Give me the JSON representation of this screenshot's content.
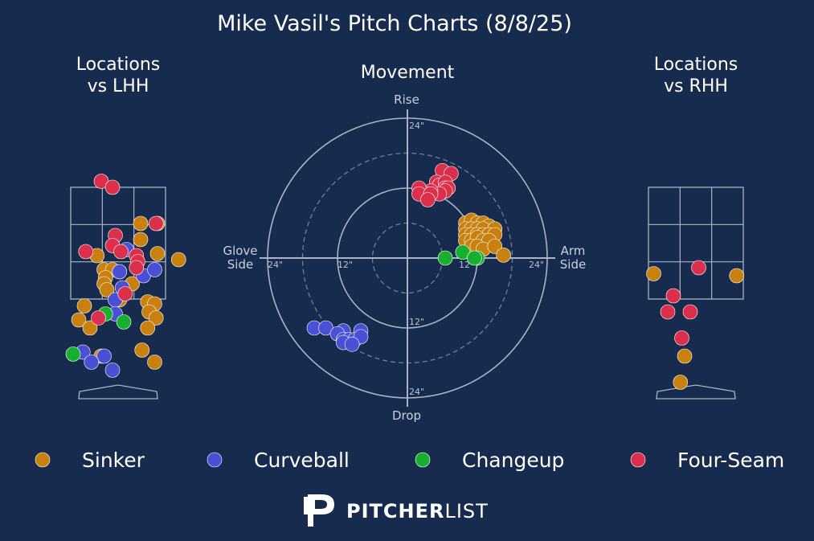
{
  "title": "Mike Vasil's Pitch Charts (8/8/25)",
  "colors": {
    "background": "#162b4d",
    "Sinker": "#c8800f",
    "Curveball": "#4a4fd6",
    "Changeup": "#16b02e",
    "Four-Seam": "#dc2f4c"
  },
  "legend": {
    "items": [
      {
        "name": "Sinker",
        "color": "#c8800f"
      },
      {
        "name": "Curveball",
        "color": "#4a4fd6"
      },
      {
        "name": "Changeup",
        "color": "#16b02e"
      },
      {
        "name": "Four-Seam",
        "color": "#dc2f4c"
      }
    ]
  },
  "logo": {
    "bold": "PITCHER",
    "light": "LIST"
  },
  "chart_data": [
    {
      "type": "scatter",
      "title": "Locations vs LHH",
      "title_lines": [
        "Locations",
        "vs LHH"
      ],
      "series": [
        {
          "name": "Sinker",
          "points": [
            [
              -1.2,
              2.15
            ],
            [
              0.8,
              4.2
            ],
            [
              1.4,
              4.2
            ],
            [
              0.8,
              3.8
            ],
            [
              -0.75,
              3.4
            ],
            [
              1.4,
              3.45
            ],
            [
              2.15,
              3.3
            ],
            [
              -0.5,
              3.05
            ],
            [
              -0.2,
              3.05
            ],
            [
              0.05,
              3.0
            ],
            [
              -0.45,
              2.85
            ],
            [
              -0.5,
              2.7
            ],
            [
              0.5,
              2.7
            ],
            [
              -0.4,
              2.55
            ],
            [
              0.05,
              2.3
            ],
            [
              1.05,
              2.25
            ],
            [
              1.3,
              2.2
            ],
            [
              1.1,
              2.0
            ],
            [
              1.35,
              1.85
            ],
            [
              -1.4,
              1.8
            ],
            [
              -1.0,
              1.6
            ],
            [
              1.05,
              1.6
            ],
            [
              0.85,
              1.05
            ],
            [
              -0.6,
              0.9
            ],
            [
              1.3,
              0.75
            ]
          ]
        },
        {
          "name": "Curveball",
          "points": [
            [
              0.3,
              3.55
            ],
            [
              0.05,
              3.0
            ],
            [
              0.15,
              2.6
            ],
            [
              0.9,
              2.9
            ],
            [
              1.3,
              3.05
            ],
            [
              -0.1,
              2.3
            ],
            [
              -0.1,
              1.95
            ],
            [
              -1.25,
              1.0
            ],
            [
              -0.5,
              0.9
            ],
            [
              -0.95,
              0.75
            ],
            [
              -0.2,
              0.55
            ]
          ]
        },
        {
          "name": "Changeup",
          "points": [
            [
              -0.45,
              1.95
            ],
            [
              0.2,
              1.75
            ],
            [
              -1.6,
              0.95
            ]
          ]
        },
        {
          "name": "Four-Seam",
          "points": [
            [
              -0.6,
              5.25
            ],
            [
              -0.2,
              5.1
            ],
            [
              1.35,
              4.2
            ],
            [
              -0.1,
              3.9
            ],
            [
              -0.2,
              3.65
            ],
            [
              -1.15,
              3.5
            ],
            [
              0.1,
              3.5
            ],
            [
              0.65,
              3.4
            ],
            [
              0.7,
              3.25
            ],
            [
              0.65,
              3.1
            ],
            [
              0.25,
              2.45
            ],
            [
              -0.7,
              1.85
            ]
          ]
        }
      ]
    },
    {
      "type": "scatter",
      "title": "Movement",
      "axis_labels": {
        "top": "Rise",
        "bottom": "Drop",
        "left": "Glove Side",
        "right": "Arm Side"
      },
      "ring_labels": [
        "12\"",
        "24\""
      ],
      "xlim": [
        -24,
        24
      ],
      "ylim": [
        -24,
        24
      ],
      "series": [
        {
          "name": "Sinker",
          "points": [
            [
              10,
              6
            ],
            [
              11,
              6.5
            ],
            [
              12,
              6
            ],
            [
              13,
              6
            ],
            [
              14,
              5.5
            ],
            [
              10,
              5
            ],
            [
              11,
              5
            ],
            [
              12,
              5
            ],
            [
              13,
              5
            ],
            [
              15,
              5
            ],
            [
              10,
              4
            ],
            [
              11,
              4
            ],
            [
              12,
              4
            ],
            [
              13,
              4
            ],
            [
              14,
              4
            ],
            [
              15,
              4
            ],
            [
              10,
              3
            ],
            [
              11,
              3
            ],
            [
              12,
              3.5
            ],
            [
              13,
              3
            ],
            [
              14,
              3
            ],
            [
              11,
              2
            ],
            [
              12,
              2
            ],
            [
              13,
              1.5
            ],
            [
              15,
              2
            ],
            [
              16.5,
              0.5
            ]
          ]
        },
        {
          "name": "Curveball",
          "points": [
            [
              -16,
              -12
            ],
            [
              -14,
              -12
            ],
            [
              -11,
              -12.5
            ],
            [
              -12,
              -13
            ],
            [
              -8,
              -12.5
            ],
            [
              -11,
              -14
            ],
            [
              -10,
              -14
            ],
            [
              -9,
              -14
            ],
            [
              -8,
              -13.5
            ],
            [
              -11,
              -14.5
            ],
            [
              -9.5,
              -14.8
            ]
          ]
        },
        {
          "name": "Changeup",
          "points": [
            [
              6.5,
              0
            ],
            [
              9.5,
              1
            ],
            [
              12,
              0
            ],
            [
              11.5,
              0
            ]
          ]
        },
        {
          "name": "Four-Seam",
          "points": [
            [
              6,
              15
            ],
            [
              7.5,
              14.5
            ],
            [
              5,
              13
            ],
            [
              5.5,
              12.5
            ],
            [
              6.5,
              13
            ],
            [
              6.5,
              12
            ],
            [
              7,
              12
            ],
            [
              6.5,
              11.5
            ],
            [
              5.5,
              11
            ],
            [
              4,
              11.5
            ],
            [
              3.5,
              11
            ],
            [
              2,
              12
            ],
            [
              2,
              11
            ],
            [
              4,
              11
            ],
            [
              3.5,
              10
            ]
          ]
        }
      ]
    },
    {
      "type": "scatter",
      "title": "Locations vs RHH",
      "title_lines": [
        "Locations",
        "vs RHH"
      ],
      "series": [
        {
          "name": "Sinker",
          "points": [
            [
              -1.5,
              2.95
            ],
            [
              1.45,
              2.9
            ],
            [
              -0.4,
              0.9
            ],
            [
              -0.55,
              0.25
            ]
          ]
        },
        {
          "name": "Four-Seam",
          "points": [
            [
              0.1,
              3.1
            ],
            [
              -0.8,
              2.4
            ],
            [
              -0.2,
              2.0
            ],
            [
              -1.0,
              2.0
            ],
            [
              -0.5,
              1.35
            ]
          ]
        }
      ]
    }
  ]
}
